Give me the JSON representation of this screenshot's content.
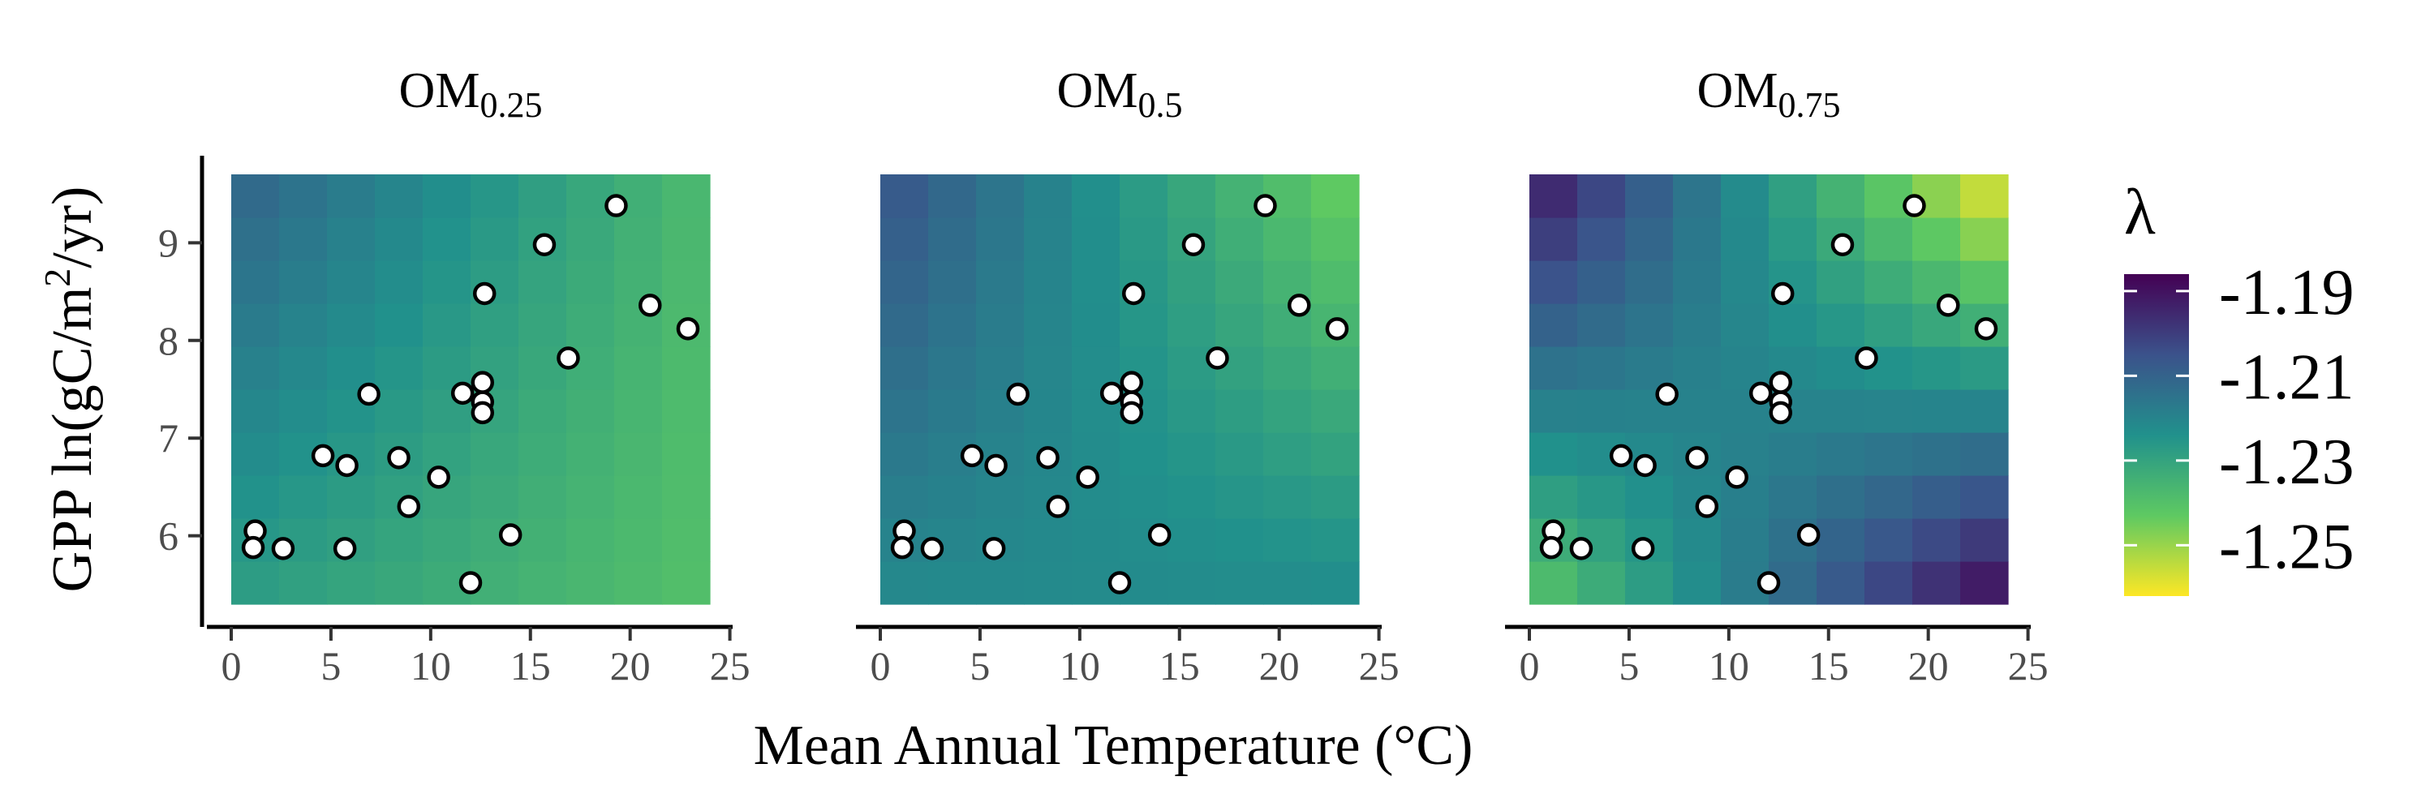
{
  "chart_data": {
    "type": "heatmap",
    "xlabel": "Mean Annual Temperature (°C)",
    "ylabel_parts": [
      "GPP ln(gC/m",
      "2",
      "/yr)"
    ],
    "xlim": [
      0,
      24
    ],
    "ylim": [
      5.3,
      9.7
    ],
    "xticks": [
      "0",
      "5",
      "10",
      "15",
      "20",
      "25"
    ],
    "xtick_values": [
      0,
      5,
      10,
      15,
      20,
      25
    ],
    "yticks": [
      "6",
      "7",
      "8",
      "9"
    ],
    "ytick_values": [
      6,
      7,
      8,
      9
    ],
    "grid": "off",
    "legend": {
      "title": "λ",
      "placement": "right",
      "labels": [
        "-1.19",
        "-1.21",
        "-1.23",
        "-1.25"
      ],
      "values": [
        -1.19,
        -1.21,
        -1.23,
        -1.25
      ],
      "range": [
        -1.186,
        -1.262
      ],
      "colors": [
        "#440154",
        "#3b528b",
        "#21918c",
        "#5ec962",
        "#fde725"
      ]
    },
    "grid_dims": {
      "nx": 10,
      "ny": 10
    },
    "panels": [
      {
        "title_main": "OM",
        "title_sub": "0.25",
        "corners": {
          "bl": -1.228,
          "br": -1.24,
          "tl": -1.21,
          "tr": -1.238
        }
      },
      {
        "title_main": "OM",
        "title_sub": "0.5",
        "corners": {
          "bl": -1.222,
          "br": -1.222,
          "tl": -1.205,
          "tr": -1.246
        }
      },
      {
        "title_main": "OM",
        "title_sub": "0.75",
        "corners": {
          "bl": -1.243,
          "br": -1.186,
          "tl": -1.19,
          "tr": -1.262
        }
      }
    ],
    "points": [
      {
        "x": 1.2,
        "y": 6.05
      },
      {
        "x": 1.1,
        "y": 5.88
      },
      {
        "x": 2.6,
        "y": 5.87
      },
      {
        "x": 4.6,
        "y": 6.82
      },
      {
        "x": 5.8,
        "y": 6.72
      },
      {
        "x": 5.7,
        "y": 5.87
      },
      {
        "x": 6.9,
        "y": 7.45
      },
      {
        "x": 8.4,
        "y": 6.8
      },
      {
        "x": 8.9,
        "y": 6.3
      },
      {
        "x": 10.4,
        "y": 6.6
      },
      {
        "x": 11.6,
        "y": 7.46
      },
      {
        "x": 12.0,
        "y": 5.52
      },
      {
        "x": 12.6,
        "y": 7.57
      },
      {
        "x": 12.6,
        "y": 7.37
      },
      {
        "x": 12.6,
        "y": 7.26
      },
      {
        "x": 12.7,
        "y": 8.48
      },
      {
        "x": 14.0,
        "y": 6.01
      },
      {
        "x": 15.7,
        "y": 8.98
      },
      {
        "x": 16.9,
        "y": 7.82
      },
      {
        "x": 19.3,
        "y": 9.38
      },
      {
        "x": 21.0,
        "y": 8.36
      },
      {
        "x": 22.9,
        "y": 8.12
      }
    ]
  }
}
